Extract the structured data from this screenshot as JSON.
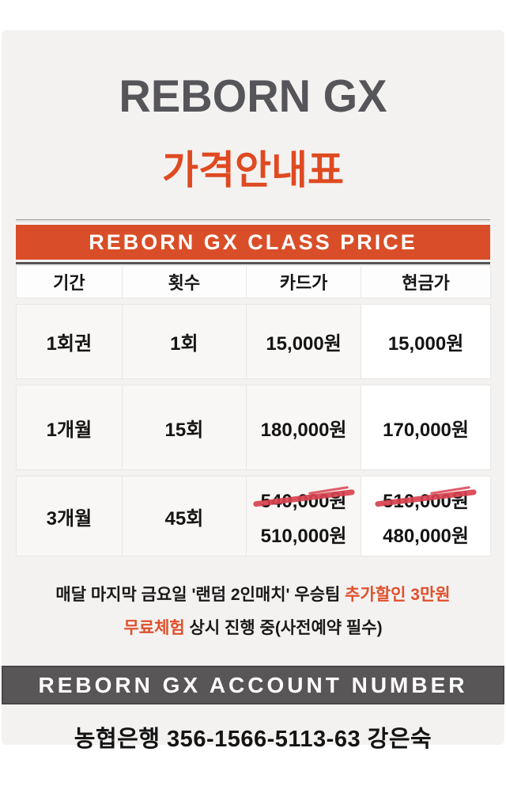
{
  "page": {
    "title": "REBORN GX",
    "subtitle": "가격안내표"
  },
  "price_section": {
    "banner": "REBORN GX CLASS PRICE",
    "table": {
      "headers": [
        "기간",
        "횟수",
        "카드가",
        "현금가"
      ],
      "rows": [
        {
          "period": "1회권",
          "count": "1회",
          "card": "15,000원",
          "cash": "15,000원"
        },
        {
          "period": "1개월",
          "count": "15회",
          "card": "180,000원",
          "cash": "170,000원"
        },
        {
          "period": "3개월",
          "count": "45회",
          "card_old": "540,000원",
          "card_new": "510,000원",
          "cash_old": "510,000원",
          "cash_new": "480,000원"
        }
      ]
    }
  },
  "promo": {
    "line1_prefix": "매달 마지막 금요일 '랜덤 2인매치' 우승팀 ",
    "line1_highlight": "추가할인 3만원",
    "line2_highlight": "무료체험",
    "line2_suffix": " 상시 진행 중(사전예약 필수)"
  },
  "account_section": {
    "banner": "REBORN GX ACCOUNT NUMBER",
    "account": "농협은행 356-1566-5113-63 강은숙"
  },
  "colors": {
    "accent_orange": "#d94e28",
    "title_red": "#df4a21",
    "strike_red": "#d7414e",
    "title_gray": "#56565a",
    "banner_gray": "#595657",
    "panel_bg": "#f4f2f1"
  }
}
